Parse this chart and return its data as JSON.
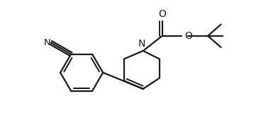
{
  "bg_color": "#ffffff",
  "line_color": "#1a1a1a",
  "line_width": 1.6,
  "figsize": [
    3.92,
    1.94
  ],
  "dpi": 100,
  "xlim": [
    0,
    10
  ],
  "ylim": [
    0,
    5
  ]
}
